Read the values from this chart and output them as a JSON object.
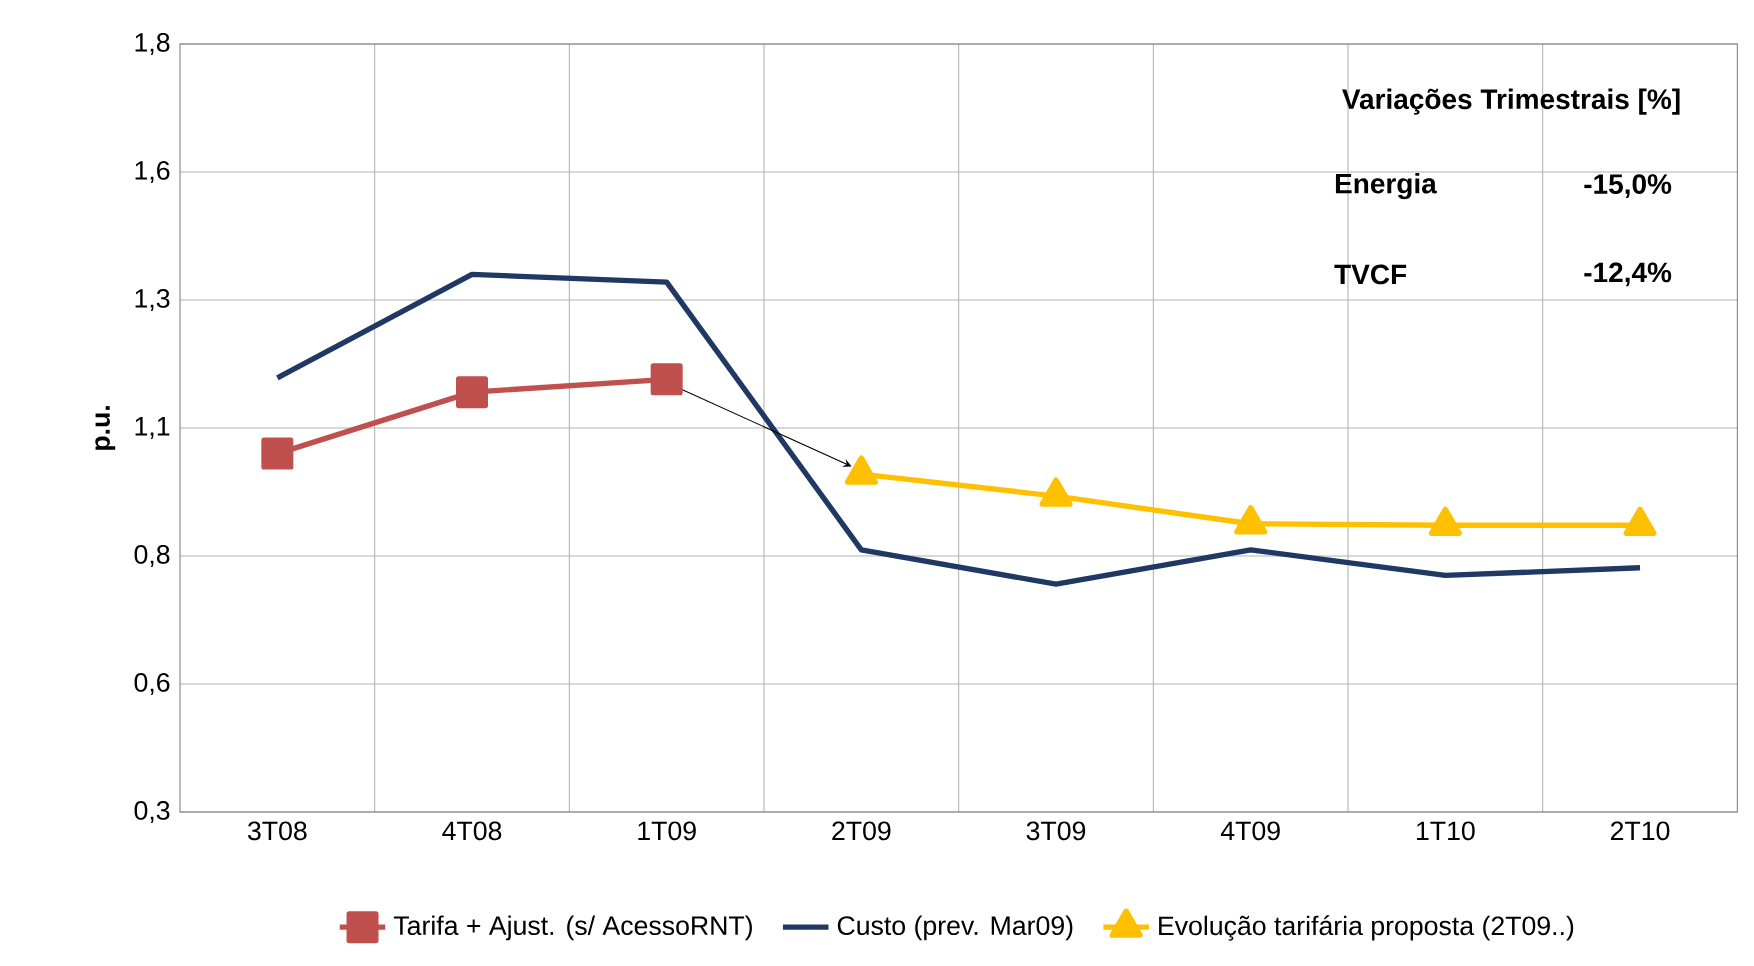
{
  "chart_data": {
    "type": "line",
    "ylabel": "p.u.",
    "categories": [
      "3T08",
      "4T08",
      "1T09",
      "2T09",
      "3T09",
      "4T09",
      "1T10",
      "2T10"
    ],
    "series": [
      {
        "name": "Tarifa + Ajust. (s/ AcessoRNT)",
        "color": "#c0504d",
        "marker": "square",
        "values": [
          1.0,
          1.12,
          1.145,
          null,
          null,
          null,
          null,
          null
        ]
      },
      {
        "name": "Custo (prev. Mar09)",
        "color": "#1f3864",
        "marker": "none",
        "values": [
          1.148,
          1.35,
          1.335,
          0.812,
          0.745,
          0.812,
          0.762,
          0.777
        ]
      },
      {
        "name": "Evolução tarifária proposta (2T09..)",
        "color": "#ffc000",
        "marker": "triangle",
        "values": [
          null,
          null,
          null,
          0.96,
          0.917,
          0.863,
          0.86,
          0.86
        ]
      }
    ],
    "ylim": [
      0.3,
      1.8
    ],
    "yticks": [
      {
        "value": 0.3,
        "label": "0,3"
      },
      {
        "value": 0.55,
        "label": "0,6"
      },
      {
        "value": 0.8,
        "label": "0,8"
      },
      {
        "value": 1.05,
        "label": "1,1"
      },
      {
        "value": 1.3,
        "label": "1,3"
      },
      {
        "value": 1.55,
        "label": "1,6"
      },
      {
        "value": 1.8,
        "label": "1,8"
      }
    ],
    "grid": true,
    "legend": "bottom",
    "line_style": "solid",
    "annotations": [
      "Variações Trimestrais [%]",
      "Energia",
      "-15,0%",
      "TVCF",
      "-12,4%"
    ]
  }
}
